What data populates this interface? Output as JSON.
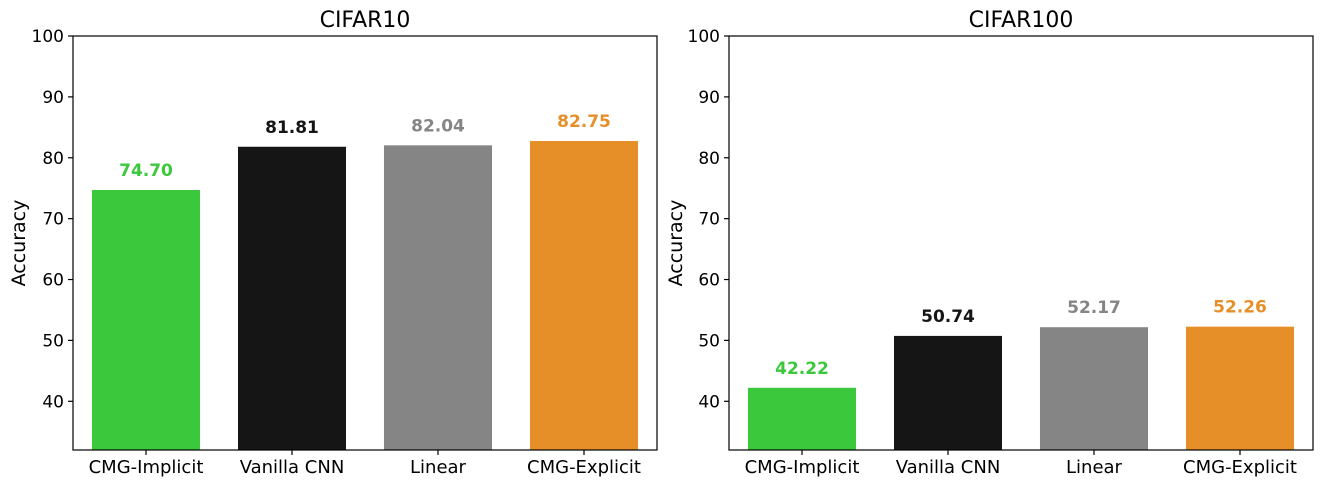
{
  "chart_data": [
    {
      "type": "bar",
      "title": "CIFAR10",
      "xlabel": "",
      "ylabel": "Accuracy",
      "ylim": [
        32,
        100
      ],
      "yticks": [
        40,
        50,
        60,
        70,
        80,
        90,
        100
      ],
      "categories": [
        "CMG-Implicit",
        "Vanilla CNN",
        "Linear",
        "CMG-Explicit"
      ],
      "values": [
        74.7,
        81.81,
        82.04,
        82.75
      ],
      "value_labels": [
        "74.70",
        "81.81",
        "82.04",
        "82.75"
      ],
      "colors": [
        "#3cc83c",
        "#151515",
        "#858585",
        "#e68f28"
      ],
      "grid": false
    },
    {
      "type": "bar",
      "title": "CIFAR100",
      "xlabel": "",
      "ylabel": "Accuracy",
      "ylim": [
        32,
        100
      ],
      "yticks": [
        40,
        50,
        60,
        70,
        80,
        90,
        100
      ],
      "categories": [
        "CMG-Implicit",
        "Vanilla CNN",
        "Linear",
        "CMG-Explicit"
      ],
      "values": [
        42.22,
        50.74,
        52.17,
        52.26
      ],
      "value_labels": [
        "42.22",
        "50.74",
        "52.17",
        "52.26"
      ],
      "colors": [
        "#3cc83c",
        "#151515",
        "#858585",
        "#e68f28"
      ],
      "grid": false
    }
  ]
}
